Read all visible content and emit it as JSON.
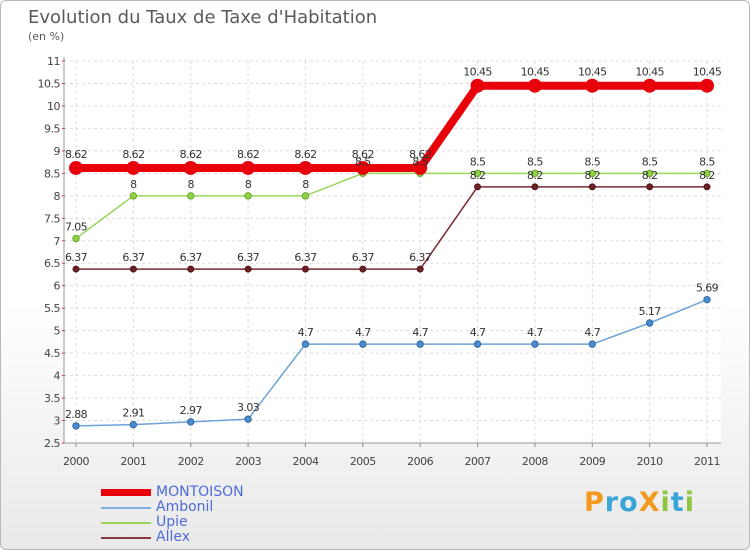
{
  "header": {
    "title": "Evolution du Taux de Taxe d'Habitation",
    "subtitle": "(en %)"
  },
  "chart_data": {
    "type": "line",
    "title": "Evolution du Taux de Taxe d'Habitation",
    "ylabel": "(en %)",
    "xlabel": "",
    "x": [
      "2000",
      "2001",
      "2002",
      "2003",
      "2004",
      "2005",
      "2006",
      "2007",
      "2008",
      "2009",
      "2010",
      "2011"
    ],
    "ylim": [
      2.5,
      11
    ],
    "yticks": [
      "2.5",
      "3",
      "3.5",
      "4",
      "4.5",
      "5",
      "5.5",
      "6",
      "6.5",
      "7",
      "7.5",
      "8",
      "8.5",
      "9",
      "9.5",
      "10",
      "10.5",
      "11"
    ],
    "grid": true,
    "legend_position": "bottom-left",
    "series": [
      {
        "name": "MONTOISON",
        "color": "#e8000b",
        "values": [
          8.62,
          8.62,
          8.62,
          8.62,
          8.62,
          8.62,
          8.62,
          10.45,
          10.45,
          10.45,
          10.45,
          10.45
        ],
        "labels": [
          "8.62",
          "8.62",
          "8.62",
          "8.62",
          "8.62",
          "8.62",
          "8.62",
          "10.45",
          "10.45",
          "10.45",
          "10.45",
          "10.45"
        ]
      },
      {
        "name": "Ambonil",
        "color": "#5e9ad6",
        "values": [
          2.88,
          2.91,
          2.97,
          3.03,
          4.7,
          4.7,
          4.7,
          4.7,
          4.7,
          4.7,
          5.17,
          5.69
        ],
        "labels": [
          "2.88",
          "2.91",
          "2.97",
          "3.03",
          "4.7",
          "4.7",
          "4.7",
          "4.7",
          "4.7",
          "4.7",
          "5.17",
          "5.69"
        ]
      },
      {
        "name": "Upie",
        "color": "#8fd246",
        "values": [
          7.05,
          8,
          8,
          8,
          8,
          8.5,
          8.5,
          8.5,
          8.5,
          8.5,
          8.5,
          8.5
        ],
        "labels": [
          "7.05",
          "8",
          "8",
          "8",
          "8",
          "8.5",
          "8.5",
          "8.5",
          "8.5",
          "8.5",
          "8.5",
          "8.5"
        ]
      },
      {
        "name": "Allex",
        "color": "#7a2a2e",
        "values": [
          6.37,
          6.37,
          6.37,
          6.37,
          6.37,
          6.37,
          6.37,
          8.2,
          8.2,
          8.2,
          8.2,
          8.2
        ],
        "labels": [
          "6.37",
          "6.37",
          "6.37",
          "6.37",
          "6.37",
          "6.37",
          "6.37",
          "8.2",
          "8.2",
          "8.2",
          "8.2",
          "8.2"
        ]
      }
    ]
  },
  "legend": {
    "items": [
      {
        "label": "MONTOISON",
        "color": "#e8000b"
      },
      {
        "label": "Ambonil",
        "color": "#7fb0e0"
      },
      {
        "label": "Upie",
        "color": "#9ad65a"
      },
      {
        "label": "Allex",
        "color": "#8a3a3e"
      }
    ]
  },
  "logo": {
    "letters": [
      {
        "char": "P",
        "color": "#f39a1e"
      },
      {
        "char": "r",
        "color": "#3aa6d8"
      },
      {
        "char": "o",
        "color": "#3aa6d8"
      },
      {
        "char": "X",
        "color": "#f39a1e"
      },
      {
        "char": "i",
        "color": "#8cc63f"
      },
      {
        "char": "t",
        "color": "#3aa6d8"
      },
      {
        "char": "i",
        "color": "#8cc63f"
      }
    ]
  }
}
